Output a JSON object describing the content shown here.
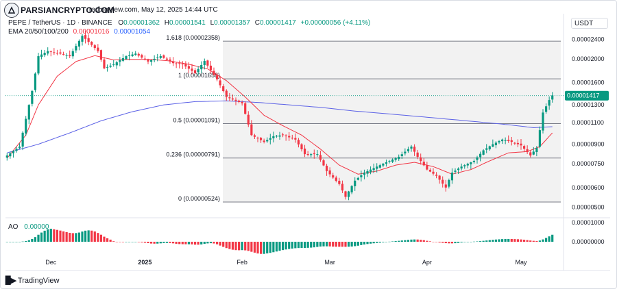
{
  "header": {
    "symbol_line": "PEPE / TetherUS · 1D · BINANCE",
    "watermark_fragment": "radingView.com, May 12, 2025 14:44 UTC",
    "ohlc": {
      "o_label": "O",
      "o_value": "0.00001362",
      "h_label": "H",
      "h_value": "0.00001541",
      "l_label": "L",
      "l_value": "0.00001357",
      "c_label": "C",
      "c_value": "0.00001417",
      "change": "+0.00000056 (+4.11%)"
    },
    "ema_label": "EMA 20/50/100/200",
    "ema_value_1": "0.00001016",
    "ema_value_2": "0.00001054",
    "ao_label": "AO",
    "ao_value": "0.00000"
  },
  "logo_text": "PARSIANCRYPTO.COM",
  "currency": "USDT",
  "footer_brand": "TradingView",
  "colors": {
    "up": "#089981",
    "down": "#f23645",
    "ema_fast": "#f23645",
    "ema_slow": "#5b61e6",
    "fib_fill": "#f2f2f2",
    "fib_line": "#787b86"
  },
  "chart_data": {
    "type": "candlestick",
    "instrument": "PEPE / TetherUS",
    "interval": "1D",
    "y_scale": "log",
    "ylim": [
      4.7e-06,
      3.05e-05
    ],
    "y_ticks": [
      {
        "value": 2.4e-05,
        "label": "0.00002400"
      },
      {
        "value": 2e-05,
        "label": "0.00002000"
      },
      {
        "value": 1.6e-05,
        "label": "0.00001600"
      },
      {
        "value": 1.3e-05,
        "label": "0.00001300"
      },
      {
        "value": 1.1e-05,
        "label": "0.00001100"
      },
      {
        "value": 9e-06,
        "label": "0.00000900"
      },
      {
        "value": 7.5e-06,
        "label": "0.00000750"
      },
      {
        "value": 6e-06,
        "label": "0.00000600"
      },
      {
        "value": 5e-06,
        "label": "0.00000500"
      }
    ],
    "last_price": {
      "value": 1.417e-05,
      "label": "0.00001417"
    },
    "x_ticks": [
      {
        "label": "Dec",
        "index": 14
      },
      {
        "label": "2025",
        "index": 44
      },
      {
        "label": "Feb",
        "index": 75
      },
      {
        "label": "Mar",
        "index": 103
      },
      {
        "label": "Apr",
        "index": 134
      },
      {
        "label": "May",
        "index": 164
      }
    ],
    "fibonacci": [
      {
        "level": "1.618",
        "value": 2.358e-05,
        "label": "1.618 (0.00002358)"
      },
      {
        "level": "1",
        "value": 1.658e-05,
        "label": "1 (0.00001658)"
      },
      {
        "level": "0.5",
        "value": 1.091e-05,
        "label": "0.5 (0.00001091)"
      },
      {
        "level": "0.236",
        "value": 7.91e-06,
        "label": "0.236 (0.00000791)"
      },
      {
        "level": "0",
        "value": 5.24e-06,
        "label": "0 (0.00000524)"
      }
    ],
    "ao_ticks": [
      {
        "value": 1e-05,
        "label": "0.00001000"
      },
      {
        "value": 0.0,
        "label": "0.00000000"
      }
    ],
    "waypoints": [
      [
        0,
        8.1e-06
      ],
      [
        4,
        8.8e-06
      ],
      [
        8,
        1.48e-05
      ],
      [
        10,
        2.05e-05
      ],
      [
        13,
        2.15e-05
      ],
      [
        17,
        2.1e-05
      ],
      [
        20,
        2.05e-05
      ],
      [
        24,
        2.48e-05
      ],
      [
        29,
        2.15e-05
      ],
      [
        31,
        1.83e-05
      ],
      [
        34,
        1.9e-05
      ],
      [
        38,
        2.05e-05
      ],
      [
        41,
        2.1e-05
      ],
      [
        45,
        1.95e-05
      ],
      [
        49,
        2.05e-05
      ],
      [
        53,
        1.92e-05
      ],
      [
        56,
        1.9e-05
      ],
      [
        60,
        1.75e-05
      ],
      [
        63,
        1.96e-05
      ],
      [
        67,
        1.65e-05
      ],
      [
        70,
        1.4e-05
      ],
      [
        75,
        1.32e-05
      ],
      [
        78,
        9.8e-06
      ],
      [
        82,
        9.2e-06
      ],
      [
        85,
        9.7e-06
      ],
      [
        88,
        9.8e-06
      ],
      [
        92,
        9.4e-06
      ],
      [
        95,
        8.2e-06
      ],
      [
        99,
        8.2e-06
      ],
      [
        102,
        7e-06
      ],
      [
        106,
        6.2e-06
      ],
      [
        108,
        5.5e-06
      ],
      [
        111,
        6.4e-06
      ],
      [
        114,
        6.9e-06
      ],
      [
        118,
        7.3e-06
      ],
      [
        122,
        7.7e-06
      ],
      [
        125,
        8e-06
      ],
      [
        129,
        8.8e-06
      ],
      [
        131,
        8e-06
      ],
      [
        134,
        7.1e-06
      ],
      [
        137,
        6.7e-06
      ],
      [
        140,
        6e-06
      ],
      [
        142,
        6.9e-06
      ],
      [
        145,
        7.3e-06
      ],
      [
        149,
        7.7e-06
      ],
      [
        152,
        8.5e-06
      ],
      [
        155,
        9e-06
      ],
      [
        158,
        9.4e-06
      ],
      [
        161,
        9.2e-06
      ],
      [
        164,
        8.9e-06
      ],
      [
        167,
        8.1e-06
      ],
      [
        169,
        8.7e-06
      ],
      [
        171,
        1.21e-05
      ],
      [
        173,
        1.36e-05
      ],
      [
        174,
        1.42e-05
      ]
    ],
    "ema_fast_waypoints": [
      [
        0,
        7.9e-06
      ],
      [
        6,
        9.8e-06
      ],
      [
        10,
        1.3e-05
      ],
      [
        16,
        1.7e-05
      ],
      [
        22,
        1.95e-05
      ],
      [
        28,
        2.06e-05
      ],
      [
        34,
        1.98e-05
      ],
      [
        40,
        1.99e-05
      ],
      [
        46,
        1.99e-05
      ],
      [
        52,
        1.96e-05
      ],
      [
        58,
        1.9e-05
      ],
      [
        64,
        1.82e-05
      ],
      [
        70,
        1.63e-05
      ],
      [
        76,
        1.4e-05
      ],
      [
        82,
        1.18e-05
      ],
      [
        88,
        1.07e-05
      ],
      [
        94,
        9.8e-06
      ],
      [
        100,
        8.6e-06
      ],
      [
        106,
        7.4e-06
      ],
      [
        112,
        6.8e-06
      ],
      [
        118,
        7e-06
      ],
      [
        124,
        7.4e-06
      ],
      [
        130,
        7.6e-06
      ],
      [
        136,
        7.3e-06
      ],
      [
        142,
        6.8e-06
      ],
      [
        148,
        7.1e-06
      ],
      [
        154,
        7.7e-06
      ],
      [
        160,
        8.3e-06
      ],
      [
        166,
        8.4e-06
      ],
      [
        170,
        8.8e-06
      ],
      [
        174,
        1e-05
      ]
    ],
    "ema_slow_waypoints": [
      [
        0,
        8.3e-06
      ],
      [
        10,
        9e-06
      ],
      [
        20,
        1e-05
      ],
      [
        30,
        1.12e-05
      ],
      [
        40,
        1.22e-05
      ],
      [
        50,
        1.3e-05
      ],
      [
        60,
        1.34e-05
      ],
      [
        70,
        1.35e-05
      ],
      [
        80,
        1.33e-05
      ],
      [
        90,
        1.3e-05
      ],
      [
        100,
        1.27e-05
      ],
      [
        110,
        1.23e-05
      ],
      [
        120,
        1.2e-05
      ],
      [
        130,
        1.17e-05
      ],
      [
        140,
        1.14e-05
      ],
      [
        150,
        1.11e-05
      ],
      [
        160,
        1.08e-05
      ],
      [
        168,
        1.05e-05
      ],
      [
        174,
        1.06e-05
      ]
    ]
  }
}
